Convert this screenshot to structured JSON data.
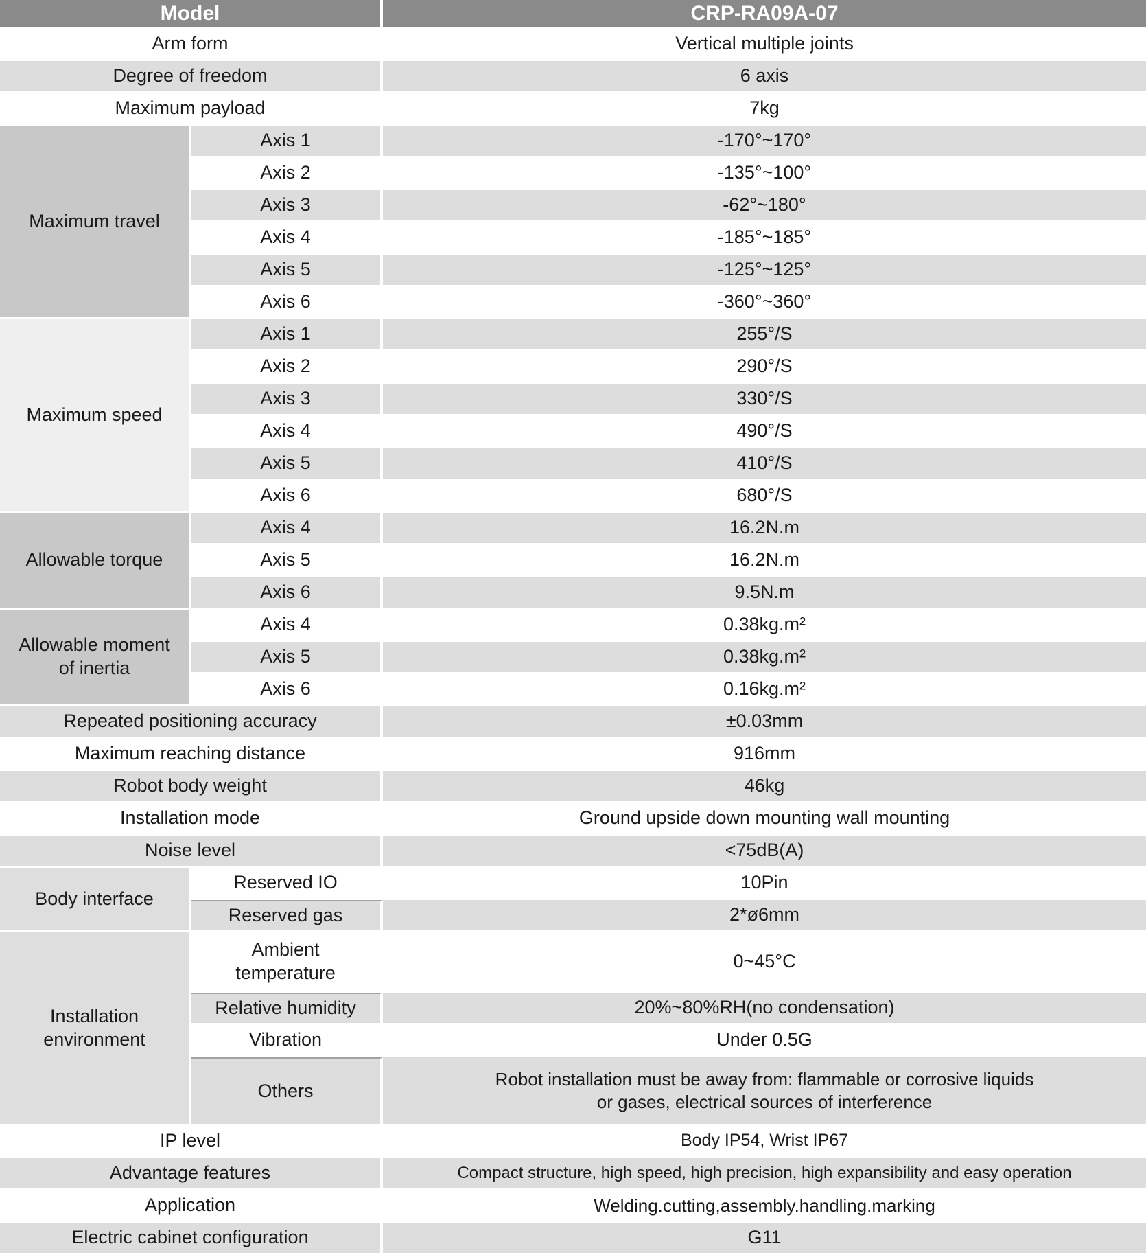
{
  "header": {
    "model_label": "Model",
    "model_value": "CRP-RA09A-07"
  },
  "colors": {
    "header_bg": "#8A8A8A",
    "header_text": "#FFFFFF",
    "row_gray": "#DDDDDD",
    "row_white": "#FFFFFF",
    "group_dark_gray": "#C8C8C8",
    "group_light_gray": "#EFEFEF",
    "group_soft_gray": "#DEDEDE",
    "text": "#1A1A1A"
  },
  "top_rows": [
    {
      "label": "Arm form",
      "value": "Vertical multiple joints"
    },
    {
      "label": "Degree of freedom",
      "value": "6 axis"
    },
    {
      "label": "Maximum payload",
      "value": "7kg"
    }
  ],
  "max_travel": {
    "label": "Maximum travel",
    "rows": [
      {
        "label": "Axis 1",
        "value": "-170°~170°"
      },
      {
        "label": "Axis 2",
        "value": "-135°~100°"
      },
      {
        "label": "Axis 3",
        "value": "-62°~180°"
      },
      {
        "label": "Axis 4",
        "value": "-185°~185°"
      },
      {
        "label": "Axis 5",
        "value": "-125°~125°"
      },
      {
        "label": "Axis 6",
        "value": "-360°~360°"
      }
    ]
  },
  "max_speed": {
    "label": "Maximum speed",
    "rows": [
      {
        "label": "Axis 1",
        "value": "255°/S"
      },
      {
        "label": "Axis 2",
        "value": "290°/S"
      },
      {
        "label": "Axis 3",
        "value": "330°/S"
      },
      {
        "label": "Axis 4",
        "value": "490°/S"
      },
      {
        "label": "Axis 5",
        "value": "410°/S"
      },
      {
        "label": "Axis 6",
        "value": "680°/S"
      }
    ]
  },
  "allowable_torque": {
    "label": "Allowable torque",
    "rows": [
      {
        "label": "Axis 4",
        "value": "16.2N.m"
      },
      {
        "label": "Axis 5",
        "value": "16.2N.m"
      },
      {
        "label": "Axis 6",
        "value": "9.5N.m"
      }
    ]
  },
  "allowable_inertia": {
    "label": "Allowable moment\nof inertia",
    "rows": [
      {
        "label": "Axis 4",
        "value": "0.38kg.m²"
      },
      {
        "label": "Axis 5",
        "value": "0.38kg.m²"
      },
      {
        "label": "Axis 6",
        "value": "0.16kg.m²"
      }
    ]
  },
  "mid_rows": [
    {
      "label": "Repeated positioning accuracy",
      "value": "±0.03mm"
    },
    {
      "label": "Maximum reaching distance",
      "value": "916mm"
    },
    {
      "label": "Robot body weight",
      "value": "46kg"
    },
    {
      "label": "Installation mode",
      "value": "Ground upside down mounting wall mounting"
    },
    {
      "label": "Noise level",
      "value": "<75dB(A)"
    }
  ],
  "body_interface": {
    "label": "Body interface",
    "rows": [
      {
        "label": "Reserved IO",
        "value": "10Pin"
      },
      {
        "label": "Reserved gas",
        "value": "2*ø6mm"
      }
    ]
  },
  "installation_environment": {
    "label": "Installation\nenvironment",
    "rows": [
      {
        "label": "Ambient\ntemperature",
        "value": "0~45°C"
      },
      {
        "label": "Relative humidity",
        "value": "20%~80%RH(no condensation)"
      },
      {
        "label": "Vibration",
        "value": "Under 0.5G"
      },
      {
        "label": "Others",
        "value": "Robot installation must be away from: flammable or corrosive liquids\nor gases, electrical sources of interference"
      }
    ]
  },
  "bottom_rows": [
    {
      "label": "IP level",
      "value": "Body IP54, Wrist IP67"
    },
    {
      "label": "Advantage features",
      "value": "Compact structure, high speed, high precision, high expansibility and easy operation"
    },
    {
      "label": "Application",
      "value": "Welding.cutting,assembly.handling.marking"
    },
    {
      "label": "Electric cabinet configuration",
      "value": "G11"
    }
  ]
}
